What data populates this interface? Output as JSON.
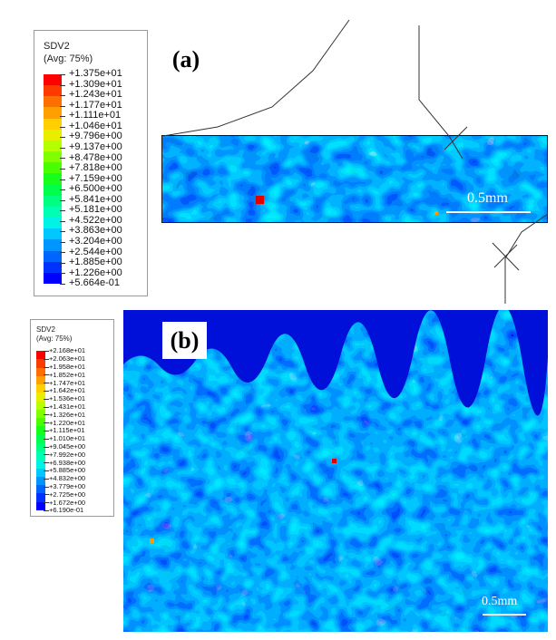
{
  "panel_a": {
    "label": "(a)",
    "legend": {
      "title_line1": "SDV2",
      "title_line2": "(Avg: 75%)",
      "values": [
        "+1.375e+01",
        "+1.309e+01",
        "+1.243e+01",
        "+1.177e+01",
        "+1.111e+01",
        "+1.046e+01",
        "+9.796e+00",
        "+9.137e+00",
        "+8.478e+00",
        "+7.818e+00",
        "+7.159e+00",
        "+6.500e+00",
        "+5.841e+00",
        "+5.181e+00",
        "+4.522e+00",
        "+3.863e+00",
        "+3.204e+00",
        "+2.544e+00",
        "+1.885e+00",
        "+1.226e+00",
        "+5.664e-01"
      ]
    },
    "scale_bar": "0.5mm"
  },
  "panel_b": {
    "label": "(b)",
    "legend": {
      "title_line1": "SDV2",
      "title_line2": "(Avg: 75%)",
      "values": [
        "+2.168e+01",
        "+2.063e+01",
        "+1.958e+01",
        "+1.852e+01",
        "+1.747e+01",
        "+1.642e+01",
        "+1.536e+01",
        "+1.431e+01",
        "+1.326e+01",
        "+1.220e+01",
        "+1.115e+01",
        "+1.010e+01",
        "+9.045e+00",
        "+7.992e+00",
        "+6.938e+00",
        "+5.885e+00",
        "+4.832e+00",
        "+3.779e+00",
        "+2.725e+00",
        "+1.672e+00",
        "+6.190e-01"
      ]
    },
    "scale_bar": "0.5mm"
  },
  "colormap": [
    "#ff0000",
    "#ff3a00",
    "#ff6e00",
    "#ffa000",
    "#ffcf00",
    "#e8ee00",
    "#b4ff00",
    "#80ff00",
    "#48ff00",
    "#15ff1a",
    "#00ff4c",
    "#00ff80",
    "#00ffb4",
    "#00f4e6",
    "#00c8ff",
    "#0096ff",
    "#0064ff",
    "#0032ff",
    "#0000ff"
  ]
}
